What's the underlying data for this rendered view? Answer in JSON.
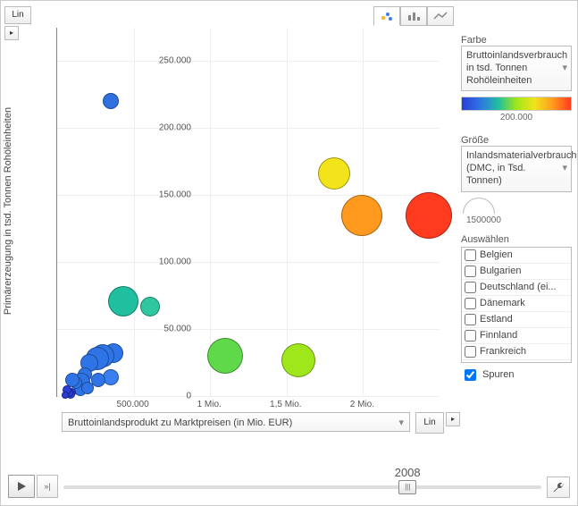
{
  "chart": {
    "type": "bubble",
    "background_color": "#ffffff",
    "grid_color": "#eeeeee",
    "axis_color": "#888888",
    "tick_fontsize": 10,
    "label_fontsize": 11,
    "xlim": [
      0,
      2500000
    ],
    "ylim": [
      0,
      275000
    ],
    "xticks": [
      {
        "v": 500000,
        "label": "500.000"
      },
      {
        "v": 1000000,
        "label": "1 Mio."
      },
      {
        "v": 1500000,
        "label": "1,5 Mio."
      },
      {
        "v": 2000000,
        "label": "2 Mio."
      }
    ],
    "yticks": [
      {
        "v": 0,
        "label": "0"
      },
      {
        "v": 50000,
        "label": "50.000"
      },
      {
        "v": 100000,
        "label": "100.000"
      },
      {
        "v": 150000,
        "label": "150.000"
      },
      {
        "v": 200000,
        "label": "200.000"
      },
      {
        "v": 250000,
        "label": "250.000"
      }
    ],
    "x_axis_label": "Bruttoinlandsprodukt zu Marktpreisen (in Mio. EUR)",
    "y_axis_label": "Primärerzeugung in tsd. Tonnen Rohöleinheiten",
    "x_scale_btn": "Lin",
    "y_scale_btn": "Lin",
    "points": [
      {
        "x": 2430000,
        "y": 135000,
        "r": 25,
        "c": "#ff3b1f"
      },
      {
        "x": 1990000,
        "y": 135000,
        "r": 22,
        "c": "#ff9a1f"
      },
      {
        "x": 1810000,
        "y": 166000,
        "r": 17,
        "c": "#f2e31b"
      },
      {
        "x": 1580000,
        "y": 27000,
        "r": 18,
        "c": "#9fe61b"
      },
      {
        "x": 1100000,
        "y": 30000,
        "r": 19,
        "c": "#5fd84a"
      },
      {
        "x": 610000,
        "y": 67000,
        "r": 10,
        "c": "#2fc6a0"
      },
      {
        "x": 430000,
        "y": 71000,
        "r": 16,
        "c": "#1fbf9f"
      },
      {
        "x": 350000,
        "y": 220000,
        "r": 8,
        "c": "#2f6fe0"
      },
      {
        "x": 370000,
        "y": 32000,
        "r": 10,
        "c": "#2f74e6"
      },
      {
        "x": 300000,
        "y": 30000,
        "r": 12,
        "c": "#2f74e6"
      },
      {
        "x": 260000,
        "y": 28000,
        "r": 12,
        "c": "#2f74e6"
      },
      {
        "x": 210000,
        "y": 25000,
        "r": 9,
        "c": "#2f74e6"
      },
      {
        "x": 350000,
        "y": 14000,
        "r": 8,
        "c": "#3a7ef0"
      },
      {
        "x": 270000,
        "y": 12000,
        "r": 7,
        "c": "#2f74e6"
      },
      {
        "x": 180000,
        "y": 16000,
        "r": 7,
        "c": "#2f74e6"
      },
      {
        "x": 160000,
        "y": 11000,
        "r": 9,
        "c": "#2f74e6"
      },
      {
        "x": 150000,
        "y": 5000,
        "r": 6,
        "c": "#2f74e6"
      },
      {
        "x": 120000,
        "y": 10000,
        "r": 6,
        "c": "#2f74e6"
      },
      {
        "x": 200000,
        "y": 6000,
        "r": 6,
        "c": "#2f74e6"
      },
      {
        "x": 100000,
        "y": 12000,
        "r": 7,
        "c": "#2f74e6"
      },
      {
        "x": 95000,
        "y": 3000,
        "r": 4,
        "c": "#2a3dd6"
      },
      {
        "x": 85000,
        "y": 1500,
        "r": 4,
        "c": "#2a3dd6"
      },
      {
        "x": 75000,
        "y": 2500,
        "r": 4,
        "c": "#2a3dd6"
      },
      {
        "x": 65000,
        "y": 4500,
        "r": 4,
        "c": "#2a3dd6"
      },
      {
        "x": 55000,
        "y": 1000,
        "r": 3,
        "c": "#2a3dd6"
      }
    ]
  },
  "panel": {
    "color_label": "Farbe",
    "color_select": "Bruttoinlandsverbrauch in tsd. Tonnen Rohöleinheiten",
    "color_tick": "200.000",
    "color_stops": [
      "#2a3dd6",
      "#2f74e6",
      "#1fbf9f",
      "#9fe61b",
      "#f2e31b",
      "#ff9a1f",
      "#ff3b1f"
    ],
    "size_label": "Größe",
    "size_select": "Inlandsmaterialverbrauch (DMC, in Tsd. Tonnen)",
    "size_max": "1500000",
    "select_label": "Auswählen",
    "countries": [
      "Belgien",
      "Bulgarien",
      "Deutschland (ei...",
      "Dänemark",
      "Estland",
      "Finnland",
      "Frankreich"
    ],
    "trails_label": "Spuren",
    "trails_checked": true
  },
  "timeline": {
    "year": "2008",
    "pos_pct": 72
  },
  "tabs": [
    "scatter",
    "bar",
    "line"
  ],
  "fontsize": 11
}
